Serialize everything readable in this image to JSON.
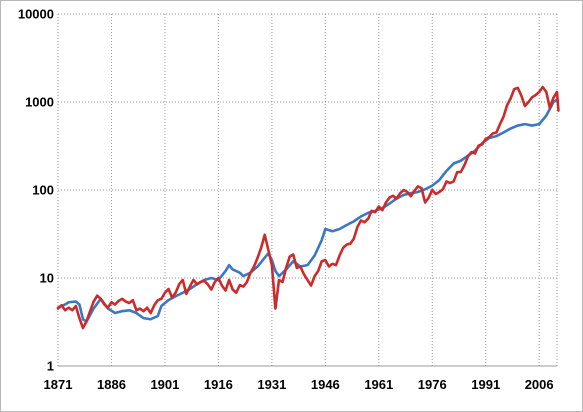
{
  "chart_data": {
    "type": "line",
    "title": "",
    "xlabel": "",
    "ylabel": "",
    "y_scale": "log",
    "ylim": [
      1,
      10000
    ],
    "xlim": [
      1871,
      2011
    ],
    "y_ticks": [
      "1",
      "10",
      "100",
      "1000",
      "10000"
    ],
    "y_tick_values": [
      1,
      10,
      100,
      1000,
      10000
    ],
    "x_ticks": [
      "1871",
      "1886",
      "1901",
      "1916",
      "1931",
      "1946",
      "1961",
      "1976",
      "1991",
      "2006"
    ],
    "x_tick_values": [
      1871,
      1886,
      1901,
      1916,
      1931,
      1946,
      1961,
      1976,
      1991,
      2006
    ],
    "grid": {
      "horizontal": true,
      "vertical": true,
      "style": "dotted"
    },
    "legend": "none",
    "series": [
      {
        "color": "#3b78c4",
        "points": [
          [
            1871,
            4.6
          ],
          [
            1873,
            5.0
          ],
          [
            1874,
            5.3
          ],
          [
            1876,
            5.4
          ],
          [
            1877,
            5.0
          ],
          [
            1878,
            3.4
          ],
          [
            1879,
            3.2
          ],
          [
            1881,
            4.5
          ],
          [
            1883,
            5.8
          ],
          [
            1885,
            4.5
          ],
          [
            1887,
            4.0
          ],
          [
            1889,
            4.2
          ],
          [
            1891,
            4.3
          ],
          [
            1893,
            4.0
          ],
          [
            1895,
            3.5
          ],
          [
            1897,
            3.4
          ],
          [
            1899,
            3.7
          ],
          [
            1900,
            4.8
          ],
          [
            1902,
            5.6
          ],
          [
            1904,
            6.2
          ],
          [
            1906,
            6.8
          ],
          [
            1908,
            7.5
          ],
          [
            1910,
            8.5
          ],
          [
            1912,
            9.5
          ],
          [
            1914,
            10.0
          ],
          [
            1916,
            9.5
          ],
          [
            1918,
            12.0
          ],
          [
            1919,
            14.0
          ],
          [
            1920,
            12.5
          ],
          [
            1922,
            11.5
          ],
          [
            1923,
            10.5
          ],
          [
            1925,
            11.5
          ],
          [
            1927,
            13.5
          ],
          [
            1929,
            17.0
          ],
          [
            1930,
            19.0
          ],
          [
            1931,
            16.0
          ],
          [
            1932,
            12.0
          ],
          [
            1933,
            10.5
          ],
          [
            1935,
            12.5
          ],
          [
            1937,
            15.5
          ],
          [
            1939,
            13.5
          ],
          [
            1941,
            14.0
          ],
          [
            1943,
            18.0
          ],
          [
            1945,
            27.0
          ],
          [
            1946,
            36.0
          ],
          [
            1948,
            34.0
          ],
          [
            1950,
            36.0
          ],
          [
            1952,
            40.0
          ],
          [
            1954,
            44.0
          ],
          [
            1956,
            50.0
          ],
          [
            1958,
            55.0
          ],
          [
            1960,
            58.0
          ],
          [
            1962,
            62.0
          ],
          [
            1964,
            70.0
          ],
          [
            1966,
            80.0
          ],
          [
            1968,
            88.0
          ],
          [
            1970,
            92.0
          ],
          [
            1972,
            95.0
          ],
          [
            1974,
            102.0
          ],
          [
            1976,
            112.0
          ],
          [
            1978,
            130.0
          ],
          [
            1980,
            165.0
          ],
          [
            1982,
            200.0
          ],
          [
            1984,
            215.0
          ],
          [
            1986,
            245.0
          ],
          [
            1988,
            280.0
          ],
          [
            1990,
            340.0
          ],
          [
            1992,
            390.0
          ],
          [
            1994,
            410.0
          ],
          [
            1996,
            450.0
          ],
          [
            1998,
            500.0
          ],
          [
            2000,
            540.0
          ],
          [
            2002,
            560.0
          ],
          [
            2004,
            540.0
          ],
          [
            2006,
            560.0
          ],
          [
            2008,
            700.0
          ],
          [
            2010,
            1000.0
          ],
          [
            2011,
            1060.0
          ]
        ]
      },
      {
        "color": "#cc2b2b",
        "points": [
          [
            1871,
            4.5
          ],
          [
            1872,
            4.9
          ],
          [
            1873,
            4.3
          ],
          [
            1874,
            4.6
          ],
          [
            1875,
            4.3
          ],
          [
            1876,
            4.8
          ],
          [
            1877,
            3.5
          ],
          [
            1878,
            2.7
          ],
          [
            1879,
            3.2
          ],
          [
            1880,
            4.2
          ],
          [
            1881,
            5.4
          ],
          [
            1882,
            6.3
          ],
          [
            1883,
            5.8
          ],
          [
            1884,
            5.0
          ],
          [
            1885,
            4.6
          ],
          [
            1886,
            5.3
          ],
          [
            1887,
            5.0
          ],
          [
            1888,
            5.5
          ],
          [
            1889,
            5.8
          ],
          [
            1890,
            5.4
          ],
          [
            1891,
            5.2
          ],
          [
            1892,
            5.6
          ],
          [
            1893,
            4.3
          ],
          [
            1894,
            4.5
          ],
          [
            1895,
            4.2
          ],
          [
            1896,
            4.6
          ],
          [
            1897,
            4.0
          ],
          [
            1898,
            4.9
          ],
          [
            1899,
            5.6
          ],
          [
            1900,
            5.8
          ],
          [
            1901,
            6.8
          ],
          [
            1902,
            7.5
          ],
          [
            1903,
            6.0
          ],
          [
            1904,
            6.8
          ],
          [
            1905,
            8.5
          ],
          [
            1906,
            9.5
          ],
          [
            1907,
            6.6
          ],
          [
            1908,
            8.0
          ],
          [
            1909,
            9.5
          ],
          [
            1910,
            8.5
          ],
          [
            1911,
            9.0
          ],
          [
            1912,
            9.3
          ],
          [
            1913,
            8.5
          ],
          [
            1914,
            7.4
          ],
          [
            1915,
            9.0
          ],
          [
            1916,
            10.0
          ],
          [
            1917,
            8.2
          ],
          [
            1918,
            7.2
          ],
          [
            1919,
            9.5
          ],
          [
            1920,
            7.4
          ],
          [
            1921,
            6.8
          ],
          [
            1922,
            8.3
          ],
          [
            1923,
            8.0
          ],
          [
            1924,
            9.0
          ],
          [
            1925,
            11.5
          ],
          [
            1926,
            13.5
          ],
          [
            1927,
            17.0
          ],
          [
            1928,
            22.0
          ],
          [
            1929,
            31.0
          ],
          [
            1930,
            21.0
          ],
          [
            1931,
            14.0
          ],
          [
            1932,
            4.5
          ],
          [
            1933,
            9.5
          ],
          [
            1934,
            9.0
          ],
          [
            1935,
            13.0
          ],
          [
            1936,
            17.5
          ],
          [
            1937,
            18.5
          ],
          [
            1938,
            13.0
          ],
          [
            1939,
            13.5
          ],
          [
            1940,
            11.0
          ],
          [
            1941,
            9.5
          ],
          [
            1942,
            8.2
          ],
          [
            1943,
            10.5
          ],
          [
            1944,
            12.0
          ],
          [
            1945,
            15.5
          ],
          [
            1946,
            16.0
          ],
          [
            1947,
            13.5
          ],
          [
            1948,
            14.5
          ],
          [
            1949,
            14.0
          ],
          [
            1950,
            18.0
          ],
          [
            1951,
            22.0
          ],
          [
            1952,
            24.0
          ],
          [
            1953,
            24.5
          ],
          [
            1954,
            28.0
          ],
          [
            1955,
            38.0
          ],
          [
            1956,
            45.0
          ],
          [
            1957,
            43.0
          ],
          [
            1958,
            47.0
          ],
          [
            1959,
            58.0
          ],
          [
            1960,
            56.0
          ],
          [
            1961,
            65.0
          ],
          [
            1962,
            59.0
          ],
          [
            1963,
            72.0
          ],
          [
            1964,
            82.0
          ],
          [
            1965,
            86.0
          ],
          [
            1966,
            80.0
          ],
          [
            1967,
            92.0
          ],
          [
            1968,
            100.0
          ],
          [
            1969,
            95.0
          ],
          [
            1970,
            85.0
          ],
          [
            1971,
            98.0
          ],
          [
            1972,
            110.0
          ],
          [
            1973,
            105.0
          ],
          [
            1974,
            72.0
          ],
          [
            1975,
            82.0
          ],
          [
            1976,
            100.0
          ],
          [
            1977,
            90.0
          ],
          [
            1978,
            95.0
          ],
          [
            1979,
            102.0
          ],
          [
            1980,
            125.0
          ],
          [
            1981,
            120.0
          ],
          [
            1982,
            125.0
          ],
          [
            1983,
            160.0
          ],
          [
            1984,
            160.0
          ],
          [
            1985,
            190.0
          ],
          [
            1986,
            240.0
          ],
          [
            1987,
            270.0
          ],
          [
            1988,
            260.0
          ],
          [
            1989,
            320.0
          ],
          [
            1990,
            330.0
          ],
          [
            1991,
            380.0
          ],
          [
            1992,
            400.0
          ],
          [
            1993,
            440.0
          ],
          [
            1994,
            450.0
          ],
          [
            1995,
            560.0
          ],
          [
            1996,
            680.0
          ],
          [
            1997,
            920.0
          ],
          [
            1998,
            1100.0
          ],
          [
            1999,
            1400.0
          ],
          [
            2000,
            1450.0
          ],
          [
            2001,
            1180.0
          ],
          [
            2002,
            900.0
          ],
          [
            2003,
            1000.0
          ],
          [
            2004,
            1130.0
          ],
          [
            2005,
            1200.0
          ],
          [
            2006,
            1300.0
          ],
          [
            2007,
            1480.0
          ],
          [
            2008,
            1300.0
          ],
          [
            2009,
            850.0
          ],
          [
            2010,
            1120.0
          ],
          [
            2011,
            1300.0
          ],
          [
            2011.4,
            800.0
          ]
        ]
      }
    ]
  }
}
